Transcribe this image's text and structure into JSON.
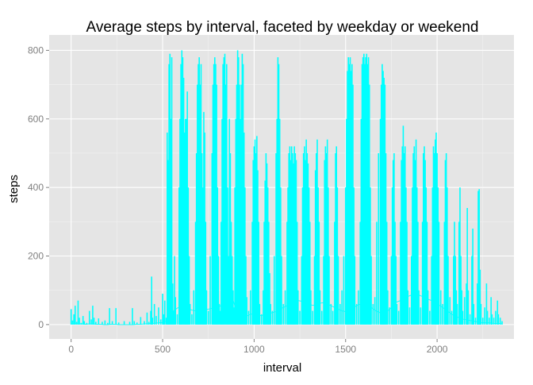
{
  "chart_data": {
    "type": "line",
    "title": "Average steps by interval, faceted by weekday or weekend",
    "xlabel": "interval",
    "ylabel": "steps",
    "xlim": [
      -120,
      2420
    ],
    "ylim": [
      -42,
      845
    ],
    "x_ticks": [
      0,
      500,
      1000,
      1500,
      2000
    ],
    "x_tick_labels": [
      "0",
      "500",
      "1000",
      "1500",
      "2000"
    ],
    "y_ticks": [
      0,
      200,
      400,
      600,
      800
    ],
    "y_tick_labels": [
      "0",
      "200",
      "400",
      "600",
      "800"
    ],
    "grid": true,
    "legend": "none",
    "colors": {
      "line": "#00ffff",
      "panel_background": "#e5e5e5",
      "grid_major": "#ffffff",
      "grid_minor": "#f2f2f2",
      "axis_text": "#7f7f7f",
      "title_text": "#000000"
    },
    "series": [
      {
        "x": [
          0,
          20,
          40,
          60,
          80,
          100,
          120,
          140,
          160,
          180,
          200,
          220,
          240,
          260,
          280,
          300,
          320,
          340,
          360,
          380,
          400,
          420,
          440,
          460,
          480,
          500,
          520,
          540,
          560,
          580,
          600,
          620,
          640,
          660,
          680,
          700,
          720,
          740,
          760,
          780,
          800,
          820,
          840,
          860,
          880,
          900,
          920,
          940,
          960,
          980,
          1000,
          1020,
          1040,
          1060,
          1080,
          1100,
          1120,
          1140,
          1160,
          1180,
          1200,
          1220,
          1240,
          1260,
          1280,
          1300,
          1320,
          1340,
          1360,
          1380,
          1400,
          1420,
          1440,
          1460,
          1480,
          1500,
          1520,
          1540,
          1560,
          1580,
          1600,
          1620,
          1640,
          1660,
          1680,
          1700,
          1720,
          1740,
          1760,
          1780,
          1800,
          1820,
          1840,
          1860,
          1880,
          1900,
          1920,
          1940,
          1960,
          1980,
          2000,
          2020,
          2040,
          2060,
          2080,
          2100,
          2120,
          2140,
          2160,
          2180,
          2200,
          2220,
          2240,
          2260,
          2280,
          2300,
          2320,
          2340,
          2355
        ],
        "values": [
          2,
          3,
          2,
          2,
          1,
          2,
          2,
          1,
          1,
          0,
          0,
          1,
          1,
          0,
          0,
          0,
          0,
          0,
          1,
          1,
          2,
          2,
          3,
          4,
          5,
          6,
          10,
          25,
          40,
          48,
          52,
          50,
          46,
          42,
          40,
          38,
          40,
          44,
          46,
          50,
          52,
          55,
          58,
          160,
          80,
          45,
          30,
          22,
          25,
          30,
          32,
          28,
          26,
          30,
          32,
          35,
          38,
          45,
          50,
          55,
          60,
          62,
          70,
          68,
          66,
          60,
          56,
          58,
          62,
          64,
          60,
          55,
          50,
          45,
          40,
          38,
          40,
          48,
          55,
          60,
          62,
          58,
          50,
          42,
          36,
          32,
          36,
          44,
          56,
          66,
          70,
          76,
          82,
          86,
          88,
          86,
          82,
          76,
          72,
          68,
          60,
          54,
          46,
          38,
          30,
          24,
          20,
          16,
          14,
          12,
          10,
          8,
          6,
          5,
          5,
          4,
          3,
          3,
          2
        ]
      }
    ],
    "spike_samples": [
      [
        0,
        45
      ],
      [
        8,
        12
      ],
      [
        15,
        30
      ],
      [
        22,
        55
      ],
      [
        30,
        8
      ],
      [
        38,
        70
      ],
      [
        45,
        20
      ],
      [
        55,
        5
      ],
      [
        65,
        25
      ],
      [
        72,
        10
      ],
      [
        85,
        5
      ],
      [
        100,
        40
      ],
      [
        110,
        15
      ],
      [
        118,
        55
      ],
      [
        125,
        20
      ],
      [
        135,
        8
      ],
      [
        150,
        18
      ],
      [
        170,
        8
      ],
      [
        185,
        12
      ],
      [
        200,
        5
      ],
      [
        210,
        48
      ],
      [
        225,
        10
      ],
      [
        245,
        48
      ],
      [
        260,
        6
      ],
      [
        290,
        10
      ],
      [
        320,
        8
      ],
      [
        335,
        48
      ],
      [
        345,
        10
      ],
      [
        360,
        6
      ],
      [
        380,
        22
      ],
      [
        400,
        10
      ],
      [
        415,
        35
      ],
      [
        425,
        8
      ],
      [
        435,
        40
      ],
      [
        440,
        140
      ],
      [
        445,
        20
      ],
      [
        455,
        60
      ],
      [
        465,
        25
      ],
      [
        478,
        50
      ],
      [
        490,
        15
      ],
      [
        500,
        90
      ],
      [
        505,
        30
      ],
      [
        512,
        70
      ],
      [
        520,
        20
      ],
      [
        525,
        560
      ],
      [
        530,
        480
      ],
      [
        535,
        760
      ],
      [
        540,
        790
      ],
      [
        545,
        600
      ],
      [
        550,
        780
      ],
      [
        555,
        120
      ],
      [
        560,
        40
      ],
      [
        565,
        200
      ],
      [
        570,
        80
      ],
      [
        580,
        30
      ],
      [
        590,
        400
      ],
      [
        595,
        600
      ],
      [
        600,
        760
      ],
      [
        605,
        800
      ],
      [
        610,
        780
      ],
      [
        615,
        720
      ],
      [
        620,
        560
      ],
      [
        625,
        600
      ],
      [
        630,
        600
      ],
      [
        635,
        680
      ],
      [
        640,
        400
      ],
      [
        645,
        200
      ],
      [
        650,
        60
      ],
      [
        660,
        30
      ],
      [
        670,
        100
      ],
      [
        680,
        300
      ],
      [
        685,
        500
      ],
      [
        690,
        700
      ],
      [
        695,
        760
      ],
      [
        700,
        780
      ],
      [
        705,
        700
      ],
      [
        710,
        760
      ],
      [
        715,
        500
      ],
      [
        720,
        400
      ],
      [
        725,
        620
      ],
      [
        730,
        560
      ],
      [
        735,
        300
      ],
      [
        740,
        100
      ],
      [
        750,
        40
      ],
      [
        760,
        200
      ],
      [
        770,
        500
      ],
      [
        775,
        700
      ],
      [
        780,
        760
      ],
      [
        785,
        780
      ],
      [
        790,
        760
      ],
      [
        795,
        700
      ],
      [
        800,
        400
      ],
      [
        805,
        200
      ],
      [
        810,
        60
      ],
      [
        815,
        40
      ],
      [
        820,
        300
      ],
      [
        825,
        600
      ],
      [
        830,
        760
      ],
      [
        835,
        780
      ],
      [
        840,
        790
      ],
      [
        845,
        700
      ],
      [
        850,
        760
      ],
      [
        855,
        400
      ],
      [
        860,
        200
      ],
      [
        865,
        600
      ],
      [
        870,
        500
      ],
      [
        875,
        300
      ],
      [
        880,
        200
      ],
      [
        885,
        100
      ],
      [
        890,
        50
      ],
      [
        895,
        400
      ],
      [
        900,
        600
      ],
      [
        905,
        700
      ],
      [
        910,
        800
      ],
      [
        915,
        780
      ],
      [
        920,
        700
      ],
      [
        925,
        600
      ],
      [
        930,
        700
      ],
      [
        935,
        790
      ],
      [
        940,
        760
      ],
      [
        945,
        560
      ],
      [
        950,
        400
      ],
      [
        955,
        200
      ],
      [
        960,
        80
      ],
      [
        970,
        40
      ],
      [
        980,
        100
      ],
      [
        990,
        300
      ],
      [
        995,
        480
      ],
      [
        1000,
        520
      ],
      [
        1005,
        540
      ],
      [
        1010,
        500
      ],
      [
        1015,
        550
      ],
      [
        1020,
        450
      ],
      [
        1025,
        300
      ],
      [
        1030,
        60
      ],
      [
        1040,
        30
      ],
      [
        1050,
        100
      ],
      [
        1055,
        300
      ],
      [
        1060,
        420
      ],
      [
        1065,
        500
      ],
      [
        1070,
        470
      ],
      [
        1075,
        400
      ],
      [
        1080,
        300
      ],
      [
        1085,
        150
      ],
      [
        1090,
        60
      ],
      [
        1100,
        40
      ],
      [
        1110,
        200
      ],
      [
        1120,
        500
      ],
      [
        1125,
        600
      ],
      [
        1130,
        780
      ],
      [
        1135,
        760
      ],
      [
        1140,
        600
      ],
      [
        1145,
        400
      ],
      [
        1150,
        200
      ],
      [
        1160,
        60
      ],
      [
        1170,
        100
      ],
      [
        1180,
        300
      ],
      [
        1185,
        400
      ],
      [
        1190,
        500
      ],
      [
        1195,
        520
      ],
      [
        1200,
        480
      ],
      [
        1205,
        520
      ],
      [
        1210,
        500
      ],
      [
        1215,
        470
      ],
      [
        1220,
        520
      ],
      [
        1225,
        500
      ],
      [
        1230,
        480
      ],
      [
        1235,
        300
      ],
      [
        1240,
        100
      ],
      [
        1250,
        40
      ],
      [
        1260,
        200
      ],
      [
        1265,
        400
      ],
      [
        1270,
        500
      ],
      [
        1275,
        520
      ],
      [
        1280,
        480
      ],
      [
        1285,
        540
      ],
      [
        1290,
        500
      ],
      [
        1295,
        470
      ],
      [
        1300,
        400
      ],
      [
        1305,
        300
      ],
      [
        1310,
        100
      ],
      [
        1320,
        40
      ],
      [
        1330,
        200
      ],
      [
        1335,
        450
      ],
      [
        1340,
        500
      ],
      [
        1345,
        540
      ],
      [
        1350,
        400
      ],
      [
        1355,
        300
      ],
      [
        1360,
        100
      ],
      [
        1370,
        40
      ],
      [
        1380,
        200
      ],
      [
        1385,
        480
      ],
      [
        1390,
        520
      ],
      [
        1395,
        500
      ],
      [
        1400,
        540
      ],
      [
        1405,
        400
      ],
      [
        1410,
        200
      ],
      [
        1420,
        60
      ],
      [
        1430,
        40
      ],
      [
        1440,
        300
      ],
      [
        1445,
        500
      ],
      [
        1450,
        520
      ],
      [
        1455,
        400
      ],
      [
        1460,
        200
      ],
      [
        1470,
        60
      ],
      [
        1480,
        100
      ],
      [
        1490,
        200
      ],
      [
        1500,
        400
      ],
      [
        1505,
        600
      ],
      [
        1510,
        740
      ],
      [
        1515,
        780
      ],
      [
        1520,
        760
      ],
      [
        1525,
        780
      ],
      [
        1530,
        740
      ],
      [
        1535,
        760
      ],
      [
        1540,
        700
      ],
      [
        1545,
        400
      ],
      [
        1550,
        200
      ],
      [
        1560,
        60
      ],
      [
        1570,
        100
      ],
      [
        1580,
        300
      ],
      [
        1585,
        600
      ],
      [
        1590,
        760
      ],
      [
        1595,
        780
      ],
      [
        1600,
        790
      ],
      [
        1605,
        760
      ],
      [
        1610,
        780
      ],
      [
        1615,
        790
      ],
      [
        1620,
        760
      ],
      [
        1625,
        780
      ],
      [
        1630,
        700
      ],
      [
        1635,
        400
      ],
      [
        1640,
        200
      ],
      [
        1650,
        60
      ],
      [
        1660,
        80
      ],
      [
        1670,
        300
      ],
      [
        1680,
        500
      ],
      [
        1690,
        600
      ],
      [
        1695,
        700
      ],
      [
        1700,
        760
      ],
      [
        1705,
        740
      ],
      [
        1710,
        720
      ],
      [
        1715,
        700
      ],
      [
        1720,
        500
      ],
      [
        1725,
        300
      ],
      [
        1730,
        100
      ],
      [
        1740,
        50
      ],
      [
        1750,
        200
      ],
      [
        1755,
        400
      ],
      [
        1760,
        480
      ],
      [
        1765,
        500
      ],
      [
        1770,
        300
      ],
      [
        1775,
        200
      ],
      [
        1780,
        60
      ],
      [
        1790,
        40
      ],
      [
        1800,
        300
      ],
      [
        1805,
        480
      ],
      [
        1810,
        520
      ],
      [
        1815,
        580
      ],
      [
        1820,
        500
      ],
      [
        1825,
        520
      ],
      [
        1830,
        400
      ],
      [
        1835,
        300
      ],
      [
        1840,
        100
      ],
      [
        1850,
        50
      ],
      [
        1860,
        200
      ],
      [
        1865,
        400
      ],
      [
        1870,
        500
      ],
      [
        1875,
        520
      ],
      [
        1880,
        480
      ],
      [
        1885,
        540
      ],
      [
        1890,
        400
      ],
      [
        1895,
        300
      ],
      [
        1900,
        100
      ],
      [
        1910,
        50
      ],
      [
        1920,
        300
      ],
      [
        1925,
        500
      ],
      [
        1930,
        520
      ],
      [
        1935,
        480
      ],
      [
        1940,
        400
      ],
      [
        1945,
        300
      ],
      [
        1950,
        100
      ],
      [
        1960,
        40
      ],
      [
        1970,
        200
      ],
      [
        1975,
        400
      ],
      [
        1980,
        520
      ],
      [
        1985,
        500
      ],
      [
        1990,
        540
      ],
      [
        1995,
        560
      ],
      [
        2000,
        500
      ],
      [
        2005,
        400
      ],
      [
        2010,
        300
      ],
      [
        2020,
        100
      ],
      [
        2030,
        60
      ],
      [
        2040,
        300
      ],
      [
        2045,
        480
      ],
      [
        2050,
        500
      ],
      [
        2055,
        400
      ],
      [
        2060,
        200
      ],
      [
        2070,
        80
      ],
      [
        2080,
        40
      ],
      [
        2090,
        200
      ],
      [
        2095,
        300
      ],
      [
        2100,
        200
      ],
      [
        2105,
        100
      ],
      [
        2110,
        60
      ],
      [
        2120,
        300
      ],
      [
        2125,
        400
      ],
      [
        2130,
        200
      ],
      [
        2135,
        100
      ],
      [
        2140,
        40
      ],
      [
        2150,
        80
      ],
      [
        2160,
        120
      ],
      [
        2165,
        340
      ],
      [
        2170,
        100
      ],
      [
        2180,
        30
      ],
      [
        2190,
        200
      ],
      [
        2195,
        280
      ],
      [
        2200,
        60
      ],
      [
        2210,
        20
      ],
      [
        2220,
        120
      ],
      [
        2225,
        390
      ],
      [
        2230,
        395
      ],
      [
        2235,
        160
      ],
      [
        2240,
        60
      ],
      [
        2250,
        20
      ],
      [
        2260,
        50
      ],
      [
        2270,
        120
      ],
      [
        2275,
        40
      ],
      [
        2285,
        20
      ],
      [
        2295,
        80
      ],
      [
        2300,
        30
      ],
      [
        2310,
        20
      ],
      [
        2320,
        40
      ],
      [
        2330,
        70
      ],
      [
        2335,
        30
      ],
      [
        2345,
        20
      ],
      [
        2355,
        10
      ]
    ]
  }
}
